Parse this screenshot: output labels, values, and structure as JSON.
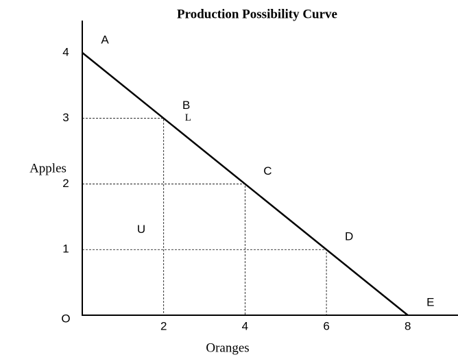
{
  "chart_data": {
    "type": "line",
    "title": "Production Possibility Curve",
    "x_label": "Oranges",
    "y_label": "Apples",
    "origin_label": "O",
    "x": [
      0,
      2,
      4,
      6,
      8
    ],
    "series": [
      {
        "name": null,
        "color": "#000000",
        "values": [
          4,
          3,
          2,
          1,
          0
        ]
      }
    ],
    "point_labels": [
      "A",
      "B",
      "C",
      "D",
      "E"
    ],
    "annotations": [
      {
        "text": "U",
        "x": 1.45,
        "y": 1.3
      },
      {
        "text": "L",
        "x": 2.6,
        "y": 3.0
      }
    ],
    "xlim": [
      0,
      9.2
    ],
    "ylim": [
      0,
      4.5
    ],
    "xticks": [
      2,
      4,
      6,
      8
    ],
    "yticks": [
      1,
      2,
      3,
      4
    ],
    "guides": true
  }
}
